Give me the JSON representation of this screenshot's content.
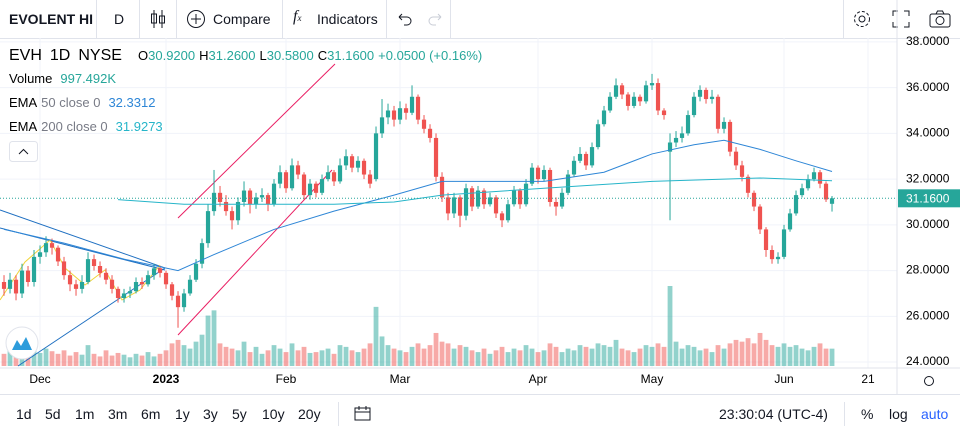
{
  "toolbar": {
    "symbol": "EVOLENT HI",
    "interval": "D",
    "compare": "Compare",
    "indicators": "Indicators"
  },
  "legend": {
    "symbol": "EVH",
    "interval": "1D",
    "exchange": "NYSE",
    "open_key": "O",
    "open": "30.9200",
    "high_key": "H",
    "high": "31.2600",
    "low_key": "L",
    "low": "30.5800",
    "close_key": "C",
    "close": "31.1600",
    "change": "+0.0500 (+0.16%)",
    "volume_name": "Volume",
    "volume": "997.492K"
  },
  "bottom_bar": {
    "ranges": [
      "1d",
      "5d",
      "1m",
      "3m",
      "6m",
      "1y",
      "3y",
      "5y",
      "10y",
      "20y"
    ],
    "clock": "23:30:04 (UTC-4)",
    "percent": "%",
    "log": "log",
    "auto": "auto"
  },
  "chart_data": {
    "type": "candlestick",
    "up_color": "#26a69a",
    "down_color": "#ef5350",
    "grid": true,
    "xlim": [
      -0.67,
      148.83
    ],
    "xticks": [
      {
        "value": 6,
        "label": "Dec"
      },
      {
        "value": 27,
        "label": "2023"
      },
      {
        "value": 47,
        "label": "Feb"
      },
      {
        "value": 66,
        "label": "Mar"
      },
      {
        "value": 89,
        "label": "Apr"
      },
      {
        "value": 108,
        "label": "May"
      },
      {
        "value": 130,
        "label": "Jun"
      },
      {
        "value": 144,
        "label": "21"
      }
    ],
    "ylim": [
      23.74,
      38.17
    ],
    "yticks": [
      {
        "value": 24,
        "label": "24.0000"
      },
      {
        "value": 26,
        "label": "26.0000"
      },
      {
        "value": 28,
        "label": "28.0000"
      },
      {
        "value": 30,
        "label": "30.0000"
      },
      {
        "value": 32,
        "label": "32.0000"
      },
      {
        "value": 34,
        "label": "34.0000"
      },
      {
        "value": 36,
        "label": "36.0000"
      },
      {
        "value": 38,
        "label": "38.0000"
      }
    ],
    "last_price": {
      "value": 31.16,
      "label": "31.1600"
    },
    "candles": [
      [
        27.5,
        27.8,
        26.9,
        27.2
      ],
      [
        27.2,
        27.9,
        27.0,
        27.6
      ],
      [
        27.6,
        27.8,
        26.7,
        27.0
      ],
      [
        27.0,
        28.3,
        26.8,
        28.0
      ],
      [
        28.0,
        28.2,
        27.3,
        27.5
      ],
      [
        27.5,
        28.9,
        27.3,
        28.6
      ],
      [
        28.6,
        29.1,
        28.3,
        28.8
      ],
      [
        28.8,
        29.5,
        28.6,
        29.2
      ],
      [
        29.2,
        29.4,
        28.7,
        29.0
      ],
      [
        29.0,
        29.1,
        28.2,
        28.4
      ],
      [
        28.4,
        28.6,
        27.6,
        27.8
      ],
      [
        27.8,
        28.0,
        27.1,
        27.4
      ],
      [
        27.4,
        27.6,
        26.9,
        27.2
      ],
      [
        27.2,
        27.8,
        27.0,
        27.5
      ],
      [
        27.5,
        28.8,
        27.4,
        28.5
      ],
      [
        28.5,
        28.7,
        28.0,
        28.2
      ],
      [
        28.2,
        28.4,
        27.7,
        27.9
      ],
      [
        27.9,
        28.1,
        27.4,
        27.6
      ],
      [
        27.6,
        27.8,
        27.0,
        27.2
      ],
      [
        27.2,
        27.3,
        26.6,
        26.8
      ],
      [
        26.8,
        27.2,
        26.6,
        27.0
      ],
      [
        27.0,
        27.3,
        26.8,
        27.1
      ],
      [
        27.1,
        27.7,
        27.0,
        27.5
      ],
      [
        27.5,
        27.7,
        27.2,
        27.4
      ],
      [
        27.4,
        28.0,
        27.3,
        27.8
      ],
      [
        27.8,
        28.3,
        27.6,
        28.1
      ],
      [
        28.1,
        28.2,
        27.7,
        27.9
      ],
      [
        27.9,
        28.0,
        27.2,
        27.4
      ],
      [
        27.4,
        27.5,
        26.7,
        26.9
      ],
      [
        26.9,
        27.1,
        25.5,
        26.4
      ],
      [
        26.4,
        27.2,
        26.2,
        27.0
      ],
      [
        27.0,
        27.8,
        26.9,
        27.6
      ],
      [
        27.6,
        28.5,
        27.5,
        28.3
      ],
      [
        28.3,
        29.4,
        28.1,
        29.2
      ],
      [
        29.2,
        30.9,
        29.0,
        30.6
      ],
      [
        30.6,
        32.4,
        30.4,
        31.4
      ],
      [
        31.4,
        31.7,
        30.8,
        31.0
      ],
      [
        31.0,
        31.3,
        30.4,
        30.6
      ],
      [
        30.6,
        30.8,
        29.8,
        30.2
      ],
      [
        30.2,
        31.2,
        30.0,
        31.0
      ],
      [
        31.0,
        31.9,
        30.8,
        31.5
      ],
      [
        31.5,
        31.6,
        30.5,
        30.9
      ],
      [
        30.9,
        31.4,
        30.7,
        31.2
      ],
      [
        31.2,
        31.6,
        31.0,
        31.3
      ],
      [
        31.3,
        31.4,
        30.6,
        30.9
      ],
      [
        30.9,
        32.0,
        30.8,
        31.8
      ],
      [
        31.8,
        32.6,
        31.6,
        32.3
      ],
      [
        32.3,
        32.4,
        31.4,
        31.6
      ],
      [
        31.6,
        32.9,
        31.5,
        32.6
      ],
      [
        32.6,
        32.8,
        32.0,
        32.2
      ],
      [
        32.2,
        32.3,
        31.1,
        31.3
      ],
      [
        31.3,
        32.0,
        31.1,
        31.8
      ],
      [
        31.8,
        31.9,
        31.2,
        31.4
      ],
      [
        31.4,
        32.2,
        31.3,
        32.0
      ],
      [
        32.0,
        32.6,
        31.9,
        32.3
      ],
      [
        32.3,
        32.4,
        31.7,
        31.9
      ],
      [
        31.9,
        32.9,
        31.8,
        32.6
      ],
      [
        32.6,
        33.3,
        32.4,
        33.0
      ],
      [
        33.0,
        33.1,
        32.3,
        32.5
      ],
      [
        32.5,
        33.0,
        32.3,
        32.8
      ],
      [
        32.8,
        32.9,
        32.0,
        32.2
      ],
      [
        32.2,
        32.4,
        31.6,
        31.8
      ],
      [
        32.0,
        34.3,
        31.9,
        34.0
      ],
      [
        34.0,
        35.5,
        33.8,
        34.7
      ],
      [
        34.7,
        35.3,
        34.4,
        35.0
      ],
      [
        35.0,
        35.2,
        34.3,
        34.6
      ],
      [
        34.6,
        35.4,
        34.4,
        35.1
      ],
      [
        35.1,
        35.3,
        34.6,
        34.9
      ],
      [
        34.9,
        36.1,
        34.8,
        35.6
      ],
      [
        35.6,
        35.7,
        34.4,
        34.6
      ],
      [
        34.6,
        34.8,
        34.0,
        34.2
      ],
      [
        34.2,
        34.4,
        33.6,
        33.8
      ],
      [
        33.8,
        34.0,
        31.9,
        32.1
      ],
      [
        32.1,
        32.3,
        31.0,
        31.2
      ],
      [
        31.2,
        31.4,
        30.2,
        30.5
      ],
      [
        30.5,
        31.4,
        30.3,
        31.2
      ],
      [
        31.2,
        31.3,
        29.9,
        30.4
      ],
      [
        30.4,
        31.8,
        30.2,
        31.6
      ],
      [
        31.6,
        31.7,
        30.6,
        30.8
      ],
      [
        30.8,
        31.7,
        30.7,
        31.5
      ],
      [
        31.5,
        31.6,
        30.7,
        30.9
      ],
      [
        30.9,
        31.4,
        30.8,
        31.2
      ],
      [
        31.2,
        31.3,
        30.3,
        30.5
      ],
      [
        30.5,
        30.6,
        29.9,
        30.2
      ],
      [
        30.2,
        31.1,
        30.1,
        30.9
      ],
      [
        30.9,
        31.7,
        30.8,
        31.5
      ],
      [
        31.5,
        31.6,
        30.7,
        30.9
      ],
      [
        30.9,
        32.0,
        30.8,
        31.8
      ],
      [
        31.8,
        32.7,
        31.7,
        32.5
      ],
      [
        32.5,
        32.6,
        31.8,
        32.0
      ],
      [
        32.0,
        32.6,
        31.9,
        32.4
      ],
      [
        32.4,
        32.5,
        30.8,
        31.0
      ],
      [
        31.0,
        31.2,
        30.4,
        30.8
      ],
      [
        30.8,
        31.6,
        30.7,
        31.4
      ],
      [
        31.4,
        32.4,
        31.3,
        32.2
      ],
      [
        32.2,
        33.0,
        32.1,
        32.8
      ],
      [
        32.8,
        33.4,
        32.7,
        33.1
      ],
      [
        33.1,
        33.2,
        32.4,
        32.6
      ],
      [
        32.6,
        33.6,
        32.5,
        33.4
      ],
      [
        33.4,
        34.6,
        33.3,
        34.4
      ],
      [
        34.4,
        35.2,
        34.3,
        35.0
      ],
      [
        35.0,
        35.8,
        34.9,
        35.6
      ],
      [
        35.6,
        36.4,
        35.5,
        36.1
      ],
      [
        36.1,
        36.2,
        35.5,
        35.7
      ],
      [
        35.7,
        35.8,
        35.0,
        35.2
      ],
      [
        35.2,
        35.8,
        35.1,
        35.6
      ],
      [
        35.6,
        35.7,
        35.2,
        35.4
      ],
      [
        35.4,
        36.3,
        35.3,
        36.1
      ],
      [
        36.1,
        36.6,
        35.9,
        36.2
      ],
      [
        36.2,
        36.4,
        34.8,
        35.0
      ],
      [
        35.0,
        35.1,
        34.6,
        34.8
      ],
      [
        33.2,
        34.0,
        30.2,
        33.6
      ],
      [
        33.6,
        34.1,
        33.4,
        33.8
      ],
      [
        33.8,
        34.3,
        33.6,
        34.0
      ],
      [
        34.0,
        35.0,
        33.9,
        34.8
      ],
      [
        34.8,
        35.8,
        34.7,
        35.6
      ],
      [
        35.6,
        36.1,
        35.4,
        35.9
      ],
      [
        35.9,
        36.0,
        35.3,
        35.5
      ],
      [
        35.5,
        35.9,
        35.3,
        35.6
      ],
      [
        35.6,
        35.7,
        34.0,
        34.2
      ],
      [
        34.2,
        34.7,
        34.0,
        34.5
      ],
      [
        34.5,
        34.6,
        33.0,
        33.2
      ],
      [
        33.2,
        33.4,
        32.4,
        32.6
      ],
      [
        32.6,
        32.8,
        31.9,
        32.1
      ],
      [
        32.1,
        32.2,
        31.2,
        31.4
      ],
      [
        31.4,
        31.5,
        30.6,
        30.8
      ],
      [
        30.8,
        30.9,
        29.6,
        29.8
      ],
      [
        29.8,
        29.9,
        28.6,
        28.9
      ],
      [
        28.9,
        29.1,
        28.3,
        28.5
      ],
      [
        28.5,
        28.8,
        28.3,
        28.6
      ],
      [
        28.6,
        30.0,
        28.5,
        29.8
      ],
      [
        29.8,
        30.7,
        29.7,
        30.5
      ],
      [
        30.5,
        31.5,
        30.4,
        31.3
      ],
      [
        31.3,
        31.8,
        31.2,
        31.6
      ],
      [
        31.6,
        32.2,
        31.5,
        32.0
      ],
      [
        32.0,
        32.5,
        31.9,
        32.3
      ],
      [
        32.3,
        32.4,
        31.6,
        31.8
      ],
      [
        31.8,
        31.9,
        31.0,
        31.11
      ],
      [
        30.92,
        31.26,
        30.58,
        31.16
      ]
    ],
    "volume": [
      700000,
      900000,
      650000,
      800000,
      600000,
      1100000,
      750000,
      1000000,
      850000,
      700000,
      900000,
      600000,
      800000,
      650000,
      1200000,
      700000,
      550000,
      900000,
      600000,
      750000,
      650000,
      500000,
      700000,
      600000,
      800000,
      550000,
      700000,
      900000,
      1300000,
      1500000,
      1200000,
      1000000,
      1400000,
      1800000,
      2900000,
      3200000,
      1300000,
      1100000,
      1000000,
      900000,
      1400000,
      800000,
      1100000,
      700000,
      900000,
      1200000,
      1000000,
      800000,
      1300000,
      900000,
      1100000,
      750000,
      800000,
      900000,
      1000000,
      700000,
      1200000,
      1100000,
      900000,
      800000,
      1000000,
      1300000,
      3400000,
      1700000,
      1200000,
      1000000,
      900000,
      800000,
      1100000,
      1300000,
      1000000,
      1200000,
      1900000,
      1400000,
      1300000,
      1000000,
      1200000,
      1100000,
      900000,
      800000,
      1000000,
      700000,
      900000,
      1100000,
      800000,
      1000000,
      900000,
      1200000,
      1000000,
      800000,
      900000,
      1300000,
      1100000,
      800000,
      1000000,
      900000,
      1200000,
      1100000,
      1000000,
      1300000,
      1200000,
      1100000,
      1500000,
      1000000,
      900000,
      800000,
      1000000,
      1200000,
      1100000,
      1300000,
      1100000,
      4600000,
      1400000,
      1000000,
      1200000,
      1100000,
      900000,
      1000000,
      800000,
      1200000,
      1000000,
      1300000,
      1500000,
      1400000,
      1600000,
      1300000,
      1900000,
      1500000,
      1200000,
      1100000,
      1300000,
      1100000,
      1200000,
      1000000,
      900000,
      1100000,
      1300000,
      1000000,
      997492
    ],
    "indicators": [
      {
        "name": "EMA",
        "params": "50 close 0",
        "value_label": "32.3312",
        "color": "#2e86d6",
        "x": [
          0,
          10,
          20,
          29,
          35,
          45,
          55,
          65,
          73,
          80,
          90,
          100,
          108,
          115,
          120,
          126,
          132,
          138
        ],
        "values": [
          29.8,
          29.2,
          28.5,
          28.0,
          28.7,
          29.8,
          30.6,
          31.3,
          31.9,
          31.9,
          31.9,
          32.3,
          33.1,
          33.5,
          33.7,
          33.3,
          32.8,
          32.3312
        ]
      },
      {
        "name": "EMA",
        "params": "200 close 0",
        "value_label": "31.9273",
        "color": "#26b5c9",
        "x": [
          19,
          30,
          40,
          55,
          65,
          73,
          90,
          108,
          126,
          138
        ],
        "values": [
          31.1,
          30.9,
          30.9,
          30.9,
          31.0,
          31.3,
          31.6,
          31.9,
          32.05,
          31.9273
        ]
      }
    ]
  }
}
